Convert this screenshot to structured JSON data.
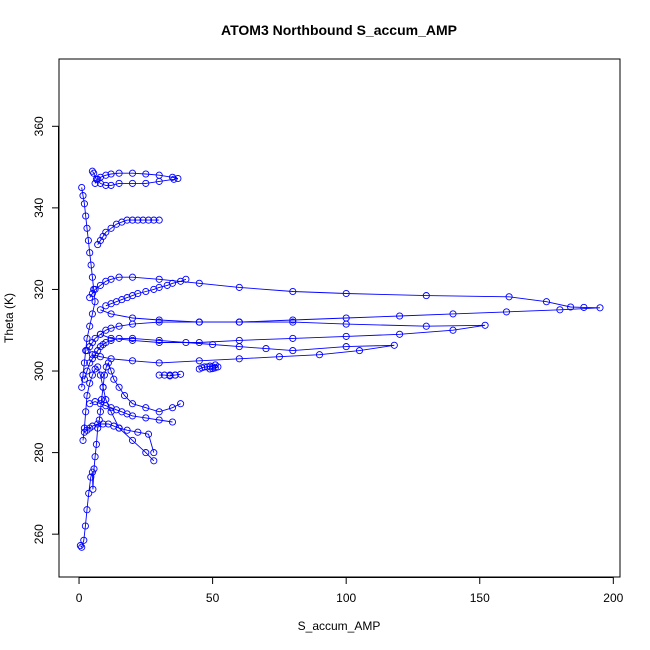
{
  "chart_data": {
    "type": "line",
    "title": "ATOM3 Northbound S_accum_AMP",
    "xlabel": "S_accum_AMP",
    "ylabel": "Theta (K)",
    "xlim": [
      -7.5,
      202.5
    ],
    "ylim": [
      249.5,
      376.5
    ],
    "x_ticks": [
      0,
      50,
      100,
      150,
      200
    ],
    "y_ticks": [
      260,
      280,
      300,
      320,
      340,
      360
    ],
    "x_tick_labels": [
      "0",
      "50",
      "100",
      "150",
      "200"
    ],
    "y_tick_labels": [
      "260",
      "280",
      "300",
      "320",
      "340",
      "360"
    ],
    "grid": false,
    "legend": "none",
    "markers": "open-circle",
    "line_color": "#0000ff",
    "series": [
      {
        "x": [
          0.5,
          1.0,
          1.8,
          2.4,
          3.0,
          3.6,
          4.4,
          5.0,
          5.2,
          5.6,
          6.0,
          6.5,
          7.0,
          7.6,
          8.0,
          8.4,
          9.0,
          9.5,
          10.2,
          11.0,
          12.0,
          13.0,
          15.0,
          17.0,
          20.0,
          25.0,
          30.0,
          35.0,
          38.0
        ],
        "y": [
          257.2,
          256.8,
          258.5,
          262.0,
          266.0,
          270.0,
          274.0,
          275.2,
          271.0,
          276.0,
          279.0,
          282.0,
          286.0,
          288.0,
          290.0,
          293.0,
          296.0,
          299.0,
          301.0,
          302.0,
          300.0,
          298.0,
          296.0,
          294.0,
          292.0,
          291.0,
          290.0,
          291.0,
          292.0
        ]
      },
      {
        "x": [
          1.5,
          2.0,
          2.5,
          3.0,
          4.0,
          5.0,
          6.0,
          7.0,
          8.0,
          9.0,
          10.0,
          12.0,
          15.0,
          20.0,
          25.0,
          28.0
        ],
        "y": [
          283.0,
          286.0,
          290.0,
          294.0,
          297.0,
          299.0,
          300.5,
          301.0,
          299.0,
          296.0,
          293.0,
          290.0,
          286.0,
          283.0,
          280.0,
          278.0
        ]
      },
      {
        "x": [
          2.0,
          3.0,
          4.0,
          5.0,
          6.0,
          7.0,
          8.0,
          9.0,
          10.0,
          12.0,
          15.0,
          20.0,
          30.0,
          40.0,
          50.0,
          60.0,
          70.0,
          80.0,
          100.0,
          118.0,
          105.0,
          90.0,
          75.0,
          60.0,
          45.0,
          30.0,
          20.0,
          12.0,
          8.0,
          5.0
        ],
        "y": [
          298.0,
          300.0,
          302.0,
          303.0,
          304.0,
          305.0,
          306.0,
          306.5,
          307.0,
          307.5,
          308.0,
          308.0,
          307.5,
          307.0,
          306.5,
          306.0,
          305.5,
          305.0,
          306.0,
          306.3,
          305.0,
          304.0,
          303.5,
          303.0,
          302.5,
          302.0,
          302.5,
          303.0,
          303.5,
          304.0
        ]
      },
      {
        "x": [
          3.0,
          4.0,
          5.0,
          6.0,
          8.0,
          10.0,
          12.0,
          15.0,
          20.0,
          30.0,
          45.0,
          60.0,
          80.0,
          100.0,
          130.0,
          152.0,
          140.0,
          120.0,
          100.0,
          80.0,
          60.0,
          45.0,
          30.0,
          20.0,
          12.0,
          8.0
        ],
        "y": [
          305.0,
          306.0,
          307.0,
          308.0,
          309.0,
          310.0,
          310.5,
          311.0,
          311.5,
          312.0,
          312.0,
          312.0,
          312.0,
          311.5,
          311.0,
          311.2,
          310.0,
          309.0,
          308.5,
          308.0,
          307.5,
          307.0,
          307.0,
          307.5,
          308.0,
          309.0
        ]
      },
      {
        "x": [
          4.0,
          5.0,
          6.0,
          8.0,
          10.0,
          12.0,
          15.0,
          20.0,
          30.0,
          45.0,
          60.0,
          80.0,
          100.0,
          130.0,
          161.0,
          175.0,
          184.0,
          189.0,
          195.0,
          180.0,
          160.0,
          140.0,
          120.0,
          100.0,
          80.0,
          60.0,
          45.0,
          30.0,
          20.0,
          12.0,
          8.0
        ],
        "y": [
          318.0,
          319.0,
          320.0,
          321.0,
          322.0,
          322.5,
          323.0,
          323.0,
          322.5,
          321.5,
          320.5,
          319.5,
          319.0,
          318.5,
          318.2,
          317.0,
          315.7,
          315.6,
          315.5,
          315.0,
          314.5,
          314.0,
          313.5,
          313.0,
          312.5,
          312.0,
          312.0,
          312.5,
          313.0,
          314.0,
          315.0
        ]
      },
      {
        "x": [
          6.0,
          7.0,
          8.0,
          10.0,
          12.0,
          15.0,
          20.0,
          25.0,
          30.0,
          35.0,
          37.0,
          35.5,
          30.0,
          25.0,
          20.0,
          15.0,
          12.0,
          10.0,
          8.0,
          6.5,
          5.5,
          5.0
        ],
        "y": [
          346.0,
          347.0,
          347.5,
          348.0,
          348.3,
          348.5,
          348.5,
          348.3,
          348.0,
          347.5,
          347.2,
          347.0,
          346.5,
          346.0,
          346.0,
          346.0,
          345.5,
          345.5,
          346.0,
          347.0,
          348.5,
          349.0
        ]
      },
      {
        "x": [
          30.0,
          32.0,
          34.0,
          36.0,
          38.0,
          36.0,
          34.0
        ],
        "y": [
          299.0,
          299.0,
          298.8,
          299.0,
          299.2,
          299.0,
          299.0
        ]
      },
      {
        "x": [
          45.0,
          46.0,
          47.0,
          48.0,
          49.0,
          50.0,
          51.0,
          52.0,
          51.0,
          50.0,
          49.0
        ],
        "y": [
          300.5,
          300.8,
          301.0,
          301.0,
          301.2,
          301.0,
          301.5,
          301.0,
          300.8,
          300.6,
          300.5
        ]
      },
      {
        "x": [
          1.0,
          1.5,
          2.0,
          2.5,
          3.0,
          3.5,
          4.0,
          4.5,
          5.0,
          5.5,
          6.0,
          5.0,
          4.0,
          3.0,
          2.5,
          2.0,
          1.5,
          1.0
        ],
        "y": [
          345.0,
          343.0,
          341.0,
          338.0,
          335.0,
          332.0,
          329.0,
          326.0,
          323.0,
          320.0,
          317.0,
          314.0,
          311.0,
          308.0,
          305.0,
          302.0,
          299.0,
          296.0
        ]
      },
      {
        "x": [
          7.0,
          8.0,
          9.0,
          10.0,
          12.0,
          14.0,
          16.0,
          18.0,
          20.0,
          22.0,
          24.0,
          26.0,
          28.0,
          30.0
        ],
        "y": [
          331.0,
          332.0,
          333.0,
          334.0,
          335.0,
          336.0,
          336.5,
          337.0,
          337.0,
          337.0,
          337.0,
          337.0,
          337.0,
          337.0
        ]
      },
      {
        "x": [
          10.0,
          12.0,
          14.0,
          16.0,
          18.0,
          20.0,
          22.0,
          25.0,
          28.0,
          30.0,
          33.0,
          35.0,
          38.0,
          40.0
        ],
        "y": [
          316.0,
          316.5,
          317.0,
          317.5,
          318.0,
          318.5,
          319.0,
          319.5,
          320.0,
          320.5,
          321.0,
          321.5,
          322.0,
          322.5
        ]
      },
      {
        "x": [
          4.0,
          6.0,
          8.0,
          10.0,
          12.0,
          14.0,
          16.0,
          18.0,
          20.0,
          25.0,
          30.0,
          35.0
        ],
        "y": [
          292.0,
          292.5,
          292.0,
          291.5,
          291.0,
          290.5,
          290.0,
          289.5,
          289.0,
          288.5,
          288.0,
          287.5
        ]
      },
      {
        "x": [
          2.0,
          3.0,
          4.0,
          5.0,
          7.0,
          9.0,
          11.0,
          13.0,
          15.0,
          18.0,
          22.0,
          26.0,
          28.0
        ],
        "y": [
          285.0,
          285.5,
          286.0,
          286.5,
          287.0,
          287.0,
          287.0,
          286.5,
          286.0,
          285.5,
          285.0,
          284.5,
          280.0
        ]
      }
    ]
  }
}
